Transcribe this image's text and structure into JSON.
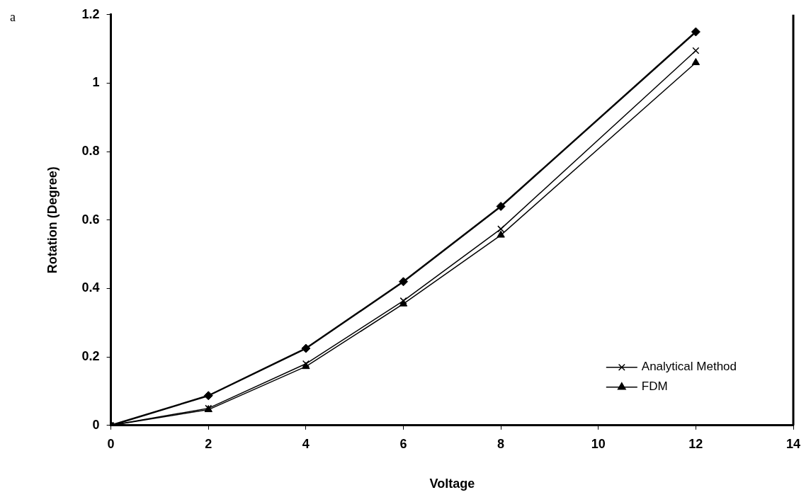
{
  "chart_data": {
    "type": "line",
    "xlabel": "Voltage",
    "ylabel": "Rotation (Degree)",
    "annotations": [
      "a"
    ],
    "x": [
      0,
      2,
      4,
      6,
      8,
      12
    ],
    "series": [
      {
        "color": "#000000",
        "marker": "diamond",
        "values": [
          0,
          0.087,
          0.225,
          0.42,
          0.64,
          1.15
        ]
      },
      {
        "name": "Analytical Method",
        "color": "#000000",
        "marker": "cross",
        "values": [
          0,
          0.05,
          0.18,
          0.364,
          0.574,
          1.095
        ]
      },
      {
        "name": "FDM",
        "color": "#000000",
        "marker": "triangle",
        "values": [
          0,
          0.046,
          0.172,
          0.355,
          0.556,
          1.06
        ]
      }
    ],
    "xlim": [
      0,
      14
    ],
    "xticks": [
      0,
      2,
      4,
      6,
      8,
      10,
      12,
      14
    ],
    "ylim": [
      0,
      1.2
    ],
    "yticks": [
      0,
      0.2,
      0.4,
      0.6,
      0.8,
      1,
      1.2
    ],
    "grid": false,
    "legend": "bottom right"
  }
}
